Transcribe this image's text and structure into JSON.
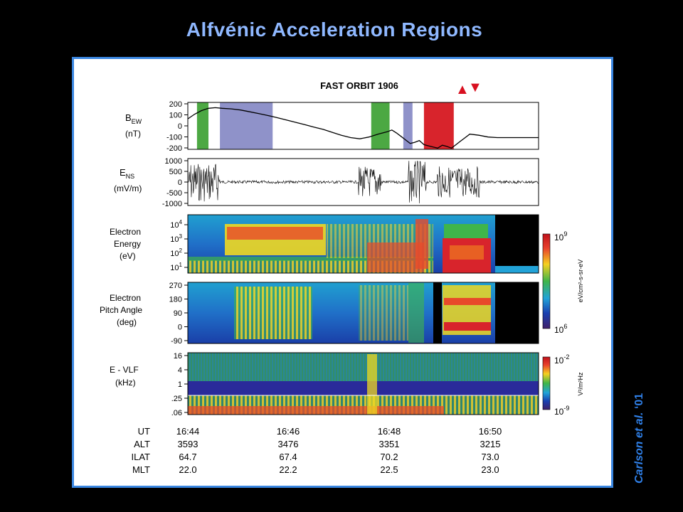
{
  "slide": {
    "title": "Alfvénic Acceleration Regions",
    "citation_author": "Carlson et al.",
    "citation_year": " ‘01"
  },
  "colors": {
    "title": "#8fb8ff",
    "frame_border": "#3a86e0",
    "citation": "#2f7fe6",
    "green_band": "#4ca843",
    "purple_band": "#8f92c9",
    "red_band": "#d8242c"
  },
  "chart_data": {
    "type": "line",
    "title": "FAST ORBIT 1906",
    "markers": [
      "▲",
      "▼"
    ],
    "bands": [
      {
        "color": "green",
        "from": "16:44.05",
        "to": "16:44.30"
      },
      {
        "color": "purple",
        "from": "16:44.55",
        "to": "16:45.70"
      },
      {
        "color": "green",
        "from": "16:47.85",
        "to": "16:48.25"
      },
      {
        "color": "purple",
        "from": "16:48.55",
        "to": "16:48.75"
      },
      {
        "color": "red",
        "from": "16:49.00",
        "to": "16:49.65"
      }
    ],
    "panels": {
      "bew": {
        "label_main": "B",
        "label_sub": "EW",
        "unit": "(nT)",
        "ticks": [
          "200",
          "100",
          "0",
          "-100",
          "-200"
        ],
        "ylim": [
          -200,
          200
        ],
        "x_minutes": [
          43.85,
          44.0,
          44.15,
          44.3,
          44.45,
          44.6,
          44.8,
          45.0,
          45.2,
          45.4,
          45.6,
          45.8,
          46.0,
          46.2,
          46.4,
          46.6,
          46.8,
          47.0,
          47.2,
          47.4,
          47.6,
          47.8,
          48.0,
          48.2,
          48.3,
          48.4,
          48.5,
          48.6,
          48.7,
          48.8,
          48.9,
          49.0,
          49.1,
          49.2,
          49.3,
          49.4,
          49.5,
          49.6,
          49.7,
          49.8,
          49.9,
          50.0,
          50.2,
          50.4,
          50.6,
          50.8,
          51.0,
          51.2,
          51.4,
          51.5
        ],
        "values": [
          60,
          100,
          130,
          150,
          155,
          150,
          145,
          135,
          120,
          105,
          88,
          70,
          50,
          30,
          10,
          -10,
          -30,
          -55,
          -80,
          -100,
          -110,
          -95,
          -70,
          -50,
          -35,
          -60,
          -90,
          -120,
          -150,
          -140,
          -125,
          -160,
          -170,
          -180,
          -190,
          -165,
          -175,
          -190,
          -160,
          -130,
          -100,
          -70,
          -80,
          -95,
          -100,
          -100,
          -100,
          -100,
          -100,
          -100
        ]
      },
      "ens": {
        "label_main": "E",
        "label_sub": "NS",
        "unit": "(mV/m)",
        "ticks": [
          "1000",
          "500",
          "0",
          "-500",
          "-1000"
        ],
        "ylim": [
          -1000,
          1000
        ]
      },
      "electron_energy": {
        "label_lines": [
          "Electron",
          "Energy",
          "(eV)"
        ],
        "ticks": [
          "10^4",
          "10^3",
          "10^2",
          "10^1"
        ],
        "colorbar": {
          "top": "10^9",
          "bottom": "10^6",
          "unit": "eV/cm²-s-sr-eV"
        }
      },
      "pitch_angle": {
        "label_lines": [
          "Electron",
          "Pitch Angle",
          "(deg)"
        ],
        "ticks": [
          "270",
          "180",
          "90",
          "0",
          "-90"
        ]
      },
      "evlf": {
        "label_lines": [
          "E - VLF",
          "(kHz)"
        ],
        "ticks": [
          "16",
          "4",
          "1",
          ".25",
          ".06"
        ],
        "colorbar": {
          "top": "10^-2",
          "bottom": "10^-9",
          "unit": "V²/m²Hz"
        }
      }
    },
    "table": {
      "rows": [
        {
          "label": "UT",
          "values": [
            "16:44",
            "16:46",
            "16:48",
            "16:50"
          ]
        },
        {
          "label": "ALT",
          "values": [
            "3593",
            "3476",
            "3351",
            "3215"
          ]
        },
        {
          "label": "ILAT",
          "values": [
            "64.7",
            "67.4",
            "70.2",
            "73.0"
          ]
        },
        {
          "label": "MLT",
          "values": [
            "22.0",
            "22.2",
            "22.5",
            "23.0"
          ]
        }
      ]
    }
  }
}
